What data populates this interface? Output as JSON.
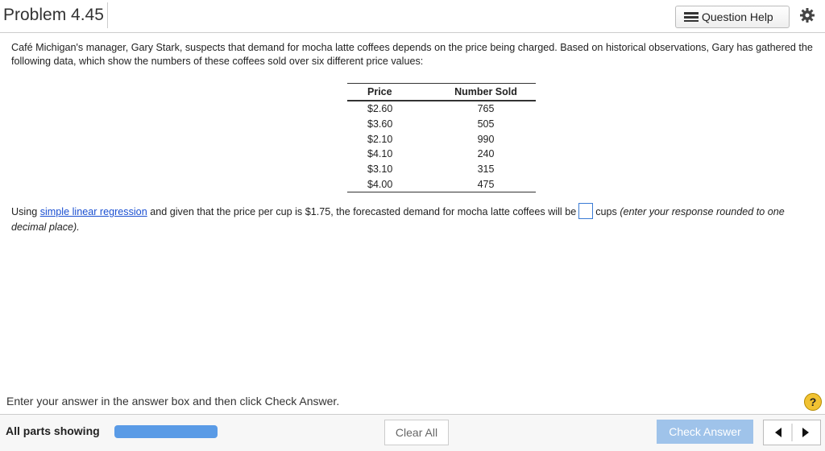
{
  "header": {
    "title": "Problem 4.45",
    "question_help": "Question Help"
  },
  "intro": "Café Michigan's manager, Gary Stark, suspects that demand for mocha latte coffees depends on the price being charged.  Based on historical observations, Gary has gathered the following data, which show the numbers of these coffees sold over six different price values:",
  "table": {
    "columns": [
      "Price",
      "Number Sold"
    ],
    "rows": [
      [
        "$2.60",
        "765"
      ],
      [
        "$3.60",
        "505"
      ],
      [
        "$2.10",
        "990"
      ],
      [
        "$4.10",
        "240"
      ],
      [
        "$3.10",
        "315"
      ],
      [
        "$4.00",
        "475"
      ]
    ]
  },
  "question": {
    "lead": "Using",
    "link": "simple linear regression",
    "middle": "and given that the price per cup is $1.75, the forecasted demand for mocha latte coffees will be",
    "unit": "cups",
    "note": "(enter your response rounded to one decimal place)."
  },
  "footer": {
    "instruction": "Enter your answer in the answer box and then click Check Answer.",
    "help_icon": "?",
    "parts_label": "All parts showing",
    "clear": "Clear All",
    "check": "Check Answer"
  }
}
